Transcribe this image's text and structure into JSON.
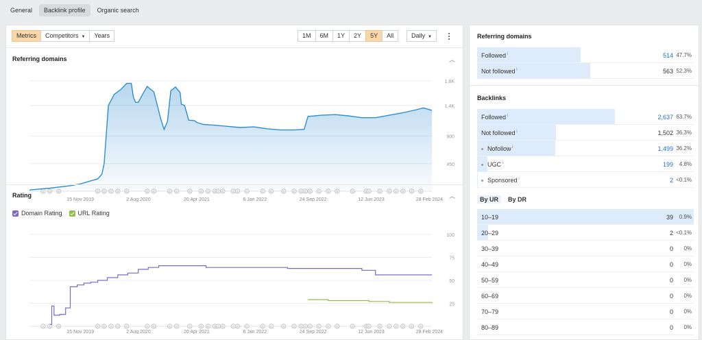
{
  "tabs": [
    "General",
    "Backlink profile",
    "Organic search"
  ],
  "toolbar": {
    "metrics": "Metrics",
    "competitors": "Competitors",
    "years": "Years",
    "periods": [
      "1M",
      "6M",
      "1Y",
      "2Y",
      "5Y",
      "All"
    ],
    "active_period": "5Y",
    "interval": "Daily"
  },
  "referring_domains_chart": {
    "title": "Referring domains",
    "chart_data": {
      "type": "area",
      "y_ticks": [
        "1.8K",
        "1.4K",
        "900",
        "450"
      ],
      "x_ticks": [
        "15 Nov 2019",
        "2 Aug 2020",
        "20 Apr 2021",
        "6 Jan 2022",
        "24 Sep 2022",
        "12 Jun 2023",
        "28 Feb 2024"
      ],
      "series": [
        {
          "x": [
            "2019-04-01",
            "2019-07-01",
            "2019-10-01",
            "2019-11-15",
            "2020-01-01",
            "2020-02-01",
            "2020-02-20",
            "2020-03-01",
            "2020-03-20",
            "2020-04-15",
            "2020-05-15",
            "2020-06-10",
            "2020-07-01",
            "2020-07-10",
            "2020-07-20",
            "2020-08-01",
            "2020-08-20",
            "2020-09-10",
            "2020-10-10",
            "2020-11-10",
            "2020-11-25",
            "2020-12-10",
            "2020-12-25",
            "2021-01-15",
            "2021-02-05",
            "2021-02-10",
            "2021-02-25",
            "2021-03-15",
            "2021-04-10",
            "2021-04-22",
            "2021-05-01",
            "2021-05-20",
            "2021-07-01",
            "2021-09-01",
            "2021-11-01",
            "2022-01-01",
            "2022-03-01",
            "2022-05-01",
            "2022-07-01",
            "2022-08-15",
            "2022-09-01",
            "2022-11-01",
            "2023-01-01",
            "2023-03-01",
            "2023-05-01",
            "2023-07-01",
            "2023-09-01",
            "2023-11-01",
            "2024-01-01",
            "2024-02-01",
            "2024-03-10"
          ],
          "y": [
            20,
            50,
            90,
            120,
            170,
            200,
            280,
            450,
            1400,
            1580,
            1660,
            1760,
            1760,
            1540,
            1450,
            1450,
            1580,
            1710,
            1620,
            1180,
            1010,
            1140,
            1640,
            1700,
            1610,
            1420,
            1400,
            1160,
            1150,
            1120,
            1110,
            1090,
            1080,
            1060,
            1040,
            1050,
            1020,
            1000,
            1000,
            1010,
            1220,
            1240,
            1250,
            1230,
            1200,
            1200,
            1240,
            1280,
            1330,
            1360,
            1320
          ]
        }
      ]
    }
  },
  "rating_chart": {
    "title": "Rating",
    "legend": [
      "Domain Rating",
      "URL Rating"
    ],
    "colors": {
      "domain_rating": "#7b68c9",
      "url_rating": "#8fbf4a",
      "referring_domains": "#2f8dd0",
      "period_active": "#fad7a8"
    },
    "chart_data": {
      "type": "line",
      "y_ticks": [
        "100",
        "75",
        "50",
        "25"
      ],
      "x_ticks": [
        "15 Nov 2019",
        "2 Aug 2020",
        "20 Apr 2021",
        "6 Jan 2022",
        "24 Sep 2022",
        "12 Jun 2023",
        "28 Feb 2024"
      ],
      "series": [
        {
          "name": "Domain Rating",
          "x": [
            "2019-07-01",
            "2019-07-10",
            "2019-07-20",
            "2019-08-15",
            "2019-08-25",
            "2019-09-10",
            "2019-10-01",
            "2019-11-01",
            "2019-12-01",
            "2020-01-01",
            "2020-02-01",
            "2020-03-15",
            "2020-05-01",
            "2020-06-15",
            "2020-08-01",
            "2020-09-15",
            "2020-11-01",
            "2021-03-01",
            "2021-06-01",
            "2022-01-01",
            "2022-06-01",
            "2022-09-01",
            "2022-12-01",
            "2023-05-01",
            "2023-07-01",
            "2023-10-01",
            "2024-03-10"
          ],
          "y": [
            2,
            22,
            12,
            13,
            13,
            20,
            43,
            45,
            47,
            48,
            50,
            53,
            56,
            58,
            62,
            64,
            66,
            66,
            64,
            64,
            63,
            63,
            63,
            61,
            56,
            56,
            56
          ]
        },
        {
          "name": "URL Rating",
          "x": [
            "2022-09-01",
            "2022-12-01",
            "2023-03-01",
            "2023-06-01",
            "2023-09-01",
            "2023-12-01",
            "2024-03-10"
          ],
          "y": [
            29,
            28,
            28,
            27,
            26,
            26,
            25
          ]
        }
      ]
    }
  },
  "referring_domains": {
    "title": "Referring domains",
    "rows": [
      {
        "label": "Followed",
        "value": "514",
        "pct": "47.7%",
        "fill": 0.477,
        "link": true
      },
      {
        "label": "Not followed",
        "value": "563",
        "pct": "52.3%",
        "fill": 0.523,
        "link": false
      }
    ]
  },
  "backlinks": {
    "title": "Backlinks",
    "rows": [
      {
        "label": "Followed",
        "value": "2,637",
        "pct": "63.7%",
        "fill": 0.637,
        "link": true,
        "indent": false
      },
      {
        "label": "Not followed",
        "value": "1,502",
        "pct": "36.3%",
        "fill": 0.363,
        "link": false,
        "indent": false
      },
      {
        "label": "Nofollow",
        "value": "1,499",
        "pct": "36.2%",
        "fill": 0.362,
        "link": true,
        "indent": true
      },
      {
        "label": "UGC",
        "value": "199",
        "pct": "4.8%",
        "fill": 0.048,
        "link": true,
        "indent": true
      },
      {
        "label": "Sponsored",
        "value": "2",
        "pct": "<0.1%",
        "fill": 0.001,
        "link": true,
        "indent": true
      }
    ]
  },
  "ur_dist": {
    "tabs": [
      "By UR",
      "By DR"
    ],
    "rows": [
      {
        "label": "10–19",
        "value": "39",
        "pct": "0.9%",
        "fill": 1.0
      },
      {
        "label": "20–29",
        "value": "2",
        "pct": "<0.1%",
        "fill": 0.05
      },
      {
        "label": "30–39",
        "value": "0",
        "pct": "0%",
        "fill": 0
      },
      {
        "label": "40–49",
        "value": "0",
        "pct": "0%",
        "fill": 0
      },
      {
        "label": "50–59",
        "value": "0",
        "pct": "0%",
        "fill": 0
      },
      {
        "label": "60–69",
        "value": "0",
        "pct": "0%",
        "fill": 0
      },
      {
        "label": "70–79",
        "value": "0",
        "pct": "0%",
        "fill": 0
      },
      {
        "label": "80–89",
        "value": "0",
        "pct": "0%",
        "fill": 0
      }
    ]
  },
  "marker_glyph": "G"
}
